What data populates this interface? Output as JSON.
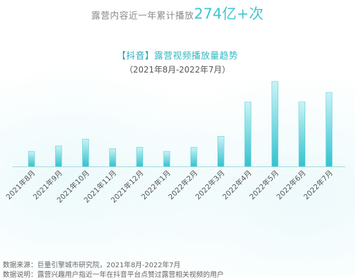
{
  "header": {
    "lead": "露营内容近一年累计播放",
    "highlight": "274亿+次"
  },
  "chart_data": {
    "type": "bar",
    "title_bracket": "【抖音】",
    "title": "露营视频播放量趋势",
    "subtitle": "（2021年8月-2022年7月）",
    "categories": [
      "2021年8月",
      "2021年9月",
      "2021年10月",
      "2021年11月",
      "2021年12月",
      "2022年1月",
      "2022年2月",
      "2022年3月",
      "2022年4月",
      "2022年5月",
      "2022年6月",
      "2022年7月"
    ],
    "values": [
      22,
      30,
      40,
      26,
      28,
      22,
      28,
      44,
      94,
      124,
      94,
      108
    ],
    "ylim": [
      0,
      130
    ],
    "grid": false,
    "legend": "none",
    "colors": {
      "bar_top": "#c9f3f5",
      "bar_bottom": "#33c2cf",
      "axis": "#9fdbe1"
    }
  },
  "footnotes": {
    "source": "数据来源：巨量引擎城市研究院，2021年8月-2022年7月",
    "note": "数据说明：露营兴趣用户指近一年在抖音平台点赞过露营相关视频的用户"
  }
}
